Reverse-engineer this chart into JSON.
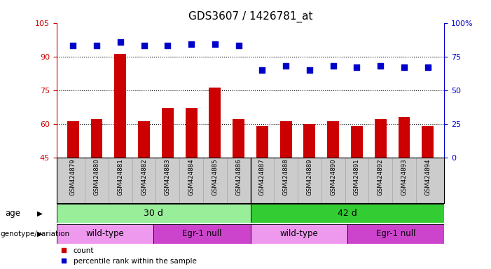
{
  "title": "GDS3607 / 1426781_at",
  "samples": [
    "GSM424879",
    "GSM424880",
    "GSM424881",
    "GSM424882",
    "GSM424883",
    "GSM424884",
    "GSM424885",
    "GSM424886",
    "GSM424887",
    "GSM424888",
    "GSM424889",
    "GSM424890",
    "GSM424891",
    "GSM424892",
    "GSM424893",
    "GSM424894"
  ],
  "counts": [
    61,
    62,
    91,
    61,
    67,
    67,
    76,
    62,
    59,
    61,
    60,
    61,
    59,
    62,
    63,
    59
  ],
  "percentile": [
    83,
    83,
    86,
    83,
    83,
    84,
    84,
    83,
    65,
    68,
    65,
    68,
    67,
    68,
    67,
    67
  ],
  "ylim_left": [
    45,
    105
  ],
  "ylim_right": [
    0,
    100
  ],
  "yticks_left": [
    45,
    60,
    75,
    90,
    105
  ],
  "yticks_right": [
    0,
    25,
    50,
    75,
    100
  ],
  "bar_color": "#CC0000",
  "dot_color": "#0000CC",
  "grid_color": "#000000",
  "xtick_bg_color": "#CCCCCC",
  "age_groups": [
    {
      "label": "30 d",
      "start": 0,
      "end": 8,
      "color": "#99EE99"
    },
    {
      "label": "42 d",
      "start": 8,
      "end": 16,
      "color": "#33CC33"
    }
  ],
  "genotype_groups": [
    {
      "label": "wild-type",
      "start": 0,
      "end": 4,
      "color": "#EE99EE"
    },
    {
      "label": "Egr-1 null",
      "start": 4,
      "end": 8,
      "color": "#CC44CC"
    },
    {
      "label": "wild-type",
      "start": 8,
      "end": 12,
      "color": "#EE99EE"
    },
    {
      "label": "Egr-1 null",
      "start": 12,
      "end": 16,
      "color": "#CC44CC"
    }
  ],
  "legend_count_label": "count",
  "legend_pct_label": "percentile rank within the sample",
  "xlabel_age": "age",
  "xlabel_geno": "genotype/variation",
  "title_color": "#000000",
  "left_axis_color": "#CC0000",
  "right_axis_color": "#0000CC",
  "bar_width": 0.5,
  "dot_size": 35,
  "background_color": "#FFFFFF"
}
